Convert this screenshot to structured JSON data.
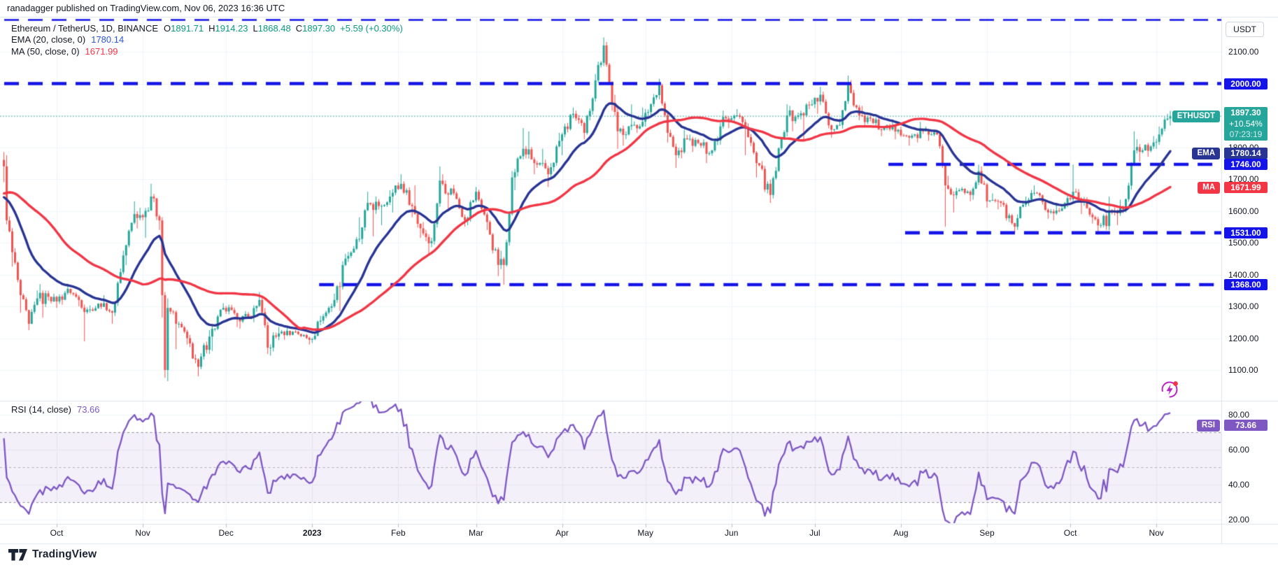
{
  "attribution": "ranadagger published on TradingView.com, Nov 06, 2023 16:36 UTC",
  "legend": {
    "symbol_title": "Ethereum / TetherUS, 1D, BINANCE",
    "o_label": "O",
    "o_value": "1891.71",
    "h_label": "H",
    "h_value": "1914.23",
    "l_label": "L",
    "l_value": "1868.48",
    "c_label": "C",
    "c_value": "1897.30",
    "change": "+5.59 (+0.30%)",
    "ema_label": "EMA (20, close, 0)",
    "ema_value": "1780.14",
    "ma_label": "MA (50, close, 0)",
    "ma_value": "1671.99",
    "rsi_label": "RSI (14, close)",
    "rsi_value": "73.66"
  },
  "price_scale": {
    "currency_button": "USDT",
    "plain_labels": [
      {
        "text": "2100.00",
        "price": 2100
      },
      {
        "text": "1800.00",
        "price": 1800
      },
      {
        "text": "1700.00",
        "price": 1700
      },
      {
        "text": "1600.00",
        "price": 1600
      },
      {
        "text": "1500.00",
        "price": 1500
      },
      {
        "text": "1400.00",
        "price": 1400
      },
      {
        "text": "1300.00",
        "price": 1300
      },
      {
        "text": "1200.00",
        "price": 1200
      },
      {
        "text": "1100.00",
        "price": 1100
      }
    ],
    "level_badges": [
      {
        "text": "2000.00",
        "price": 2000
      },
      {
        "text": "1746.00",
        "price": 1746
      },
      {
        "text": "1531.00",
        "price": 1531
      },
      {
        "text": "1368.00",
        "price": 1368
      }
    ],
    "last_price_badge": {
      "label": "ETHUSDT",
      "price": "1897.30",
      "change_pct": "+10.54%",
      "countdown": "07:23:19"
    },
    "ema_badge": {
      "label": "EMA",
      "value": "1780.14"
    },
    "ma_badge": {
      "label": "MA",
      "value": "1671.99"
    },
    "rsi_badge": {
      "label": "RSI",
      "value": "73.66"
    },
    "rsi_scale_labels": [
      {
        "text": "80.00",
        "value": 80
      },
      {
        "text": "60.00",
        "value": 60
      },
      {
        "text": "40.00",
        "value": 40
      },
      {
        "text": "20.00",
        "value": 20
      }
    ]
  },
  "time_axis": {
    "months": [
      {
        "label": "Oct",
        "date": "2022-10-01"
      },
      {
        "label": "Nov",
        "date": "2022-11-01"
      },
      {
        "label": "Dec",
        "date": "2022-12-01"
      },
      {
        "label": "2023",
        "date": "2023-01-01",
        "year": true
      },
      {
        "label": "Feb",
        "date": "2023-02-01"
      },
      {
        "label": "Mar",
        "date": "2023-03-01"
      },
      {
        "label": "Apr",
        "date": "2023-04-01"
      },
      {
        "label": "May",
        "date": "2023-05-01"
      },
      {
        "label": "Jun",
        "date": "2023-06-01"
      },
      {
        "label": "Jul",
        "date": "2023-07-01"
      },
      {
        "label": "Aug",
        "date": "2023-08-01"
      },
      {
        "label": "Sep",
        "date": "2023-09-01"
      },
      {
        "label": "Oct",
        "date": "2023-10-01"
      },
      {
        "label": "Nov",
        "date": "2023-11-01"
      }
    ]
  },
  "footer": {
    "brand": "TradingView"
  },
  "icons": {
    "flash": "lightning-notification-icon",
    "brand": "tradingview-logo"
  },
  "colors": {
    "up": "#26a69a",
    "down": "#ef5350",
    "ema_line": "#283593",
    "ma_line": "#f23645",
    "rsi_line": "#7e57c2",
    "level_line_blue": "#1414e8",
    "badge_blue": "#1414e8",
    "badge_teal": "#26a69a",
    "badge_navy": "#283593",
    "badge_red": "#f23645",
    "badge_purple": "#7e57c2",
    "last_price_dotted": "#26a69a",
    "rsi_band_fill": "rgba(126,87,194,0.09)",
    "rsi_band_line": "#787b86",
    "grid": "#f0f3fa",
    "border": "#e0e3eb",
    "text": "#131722"
  },
  "chart_data": {
    "type": "candlestick",
    "symbol": "ETHUSDT",
    "title": "Ethereum / TetherUS",
    "interval": "1D",
    "exchange": "BINANCE",
    "last_candle": {
      "open": 1891.71,
      "high": 1914.23,
      "low": 1868.48,
      "close": 1897.3,
      "change": "+5.59",
      "change_pct": "+0.30%"
    },
    "current_price_line": 1897.3,
    "price_axis_visible_range": [
      1003,
      2208
    ],
    "rsi_axis_visible_range": [
      18,
      88
    ],
    "start_date": "2022-09-12",
    "end_date": "2023-11-06",
    "horizontal_lines": [
      {
        "price": 2200,
        "start_date": "2022-09-12",
        "thin": true
      },
      {
        "price": 2000,
        "start_date": "2022-09-12"
      },
      {
        "price": 1746,
        "start_date": "2023-07-26"
      },
      {
        "price": 1531,
        "start_date": "2023-08-01"
      },
      {
        "price": 1368,
        "start_date": "2023-01-02"
      }
    ],
    "indicators": [
      {
        "type": "EMA",
        "length": 20,
        "source": "close",
        "offset": 0,
        "value": 1780.14
      },
      {
        "type": "MA",
        "length": 50,
        "source": "close",
        "offset": 0,
        "value": 1671.99
      },
      {
        "type": "RSI",
        "length": 14,
        "source": "close",
        "value": 73.66,
        "upper_band": 70,
        "middle_band": 50,
        "lower_band": 30
      }
    ],
    "prehistory_closes": [
      [
        "2022-07-14",
        1195
      ],
      [
        "2022-07-18",
        1570
      ],
      [
        "2022-07-22",
        1540
      ],
      [
        "2022-07-26",
        1450
      ],
      [
        "2022-07-30",
        1720
      ],
      [
        "2022-08-03",
        1635
      ],
      [
        "2022-08-07",
        1700
      ],
      [
        "2022-08-11",
        1850
      ],
      [
        "2022-08-14",
        1935
      ],
      [
        "2022-08-19",
        1630
      ],
      [
        "2022-08-23",
        1625
      ],
      [
        "2022-08-27",
        1480
      ],
      [
        "2022-08-31",
        1555
      ],
      [
        "2022-09-04",
        1555
      ],
      [
        "2022-09-06",
        1575
      ],
      [
        "2022-09-09",
        1715
      ],
      [
        "2022-09-11",
        1760
      ]
    ],
    "anchors": [
      [
        "2022-09-12",
        1740,
        1785,
        1690
      ],
      [
        "2022-09-13",
        1570,
        1775,
        1560
      ],
      [
        "2022-09-15",
        1470,
        1520,
        1425
      ],
      [
        "2022-09-18",
        1335,
        1390,
        1280
      ],
      [
        "2022-09-21",
        1245,
        1310,
        1225
      ],
      [
        "2022-09-24",
        1325,
        1350,
        1260
      ],
      [
        "2022-09-28",
        1330,
        1370,
        1265
      ],
      [
        "2022-10-01",
        1315,
        1340,
        1295
      ],
      [
        "2022-10-05",
        1355,
        1370,
        1305
      ],
      [
        "2022-10-09",
        1320,
        1340,
        1300
      ],
      [
        "2022-10-13",
        1290,
        1315,
        1190
      ],
      [
        "2022-10-18",
        1310,
        1335,
        1285
      ],
      [
        "2022-10-21",
        1280,
        1300,
        1245
      ],
      [
        "2022-10-25",
        1460,
        1475,
        1275
      ],
      [
        "2022-10-29",
        1590,
        1630,
        1430
      ],
      [
        "2022-11-01",
        1580,
        1610,
        1545
      ],
      [
        "2022-11-04",
        1645,
        1685,
        1515
      ],
      [
        "2022-11-07",
        1570,
        1625,
        1540
      ],
      [
        "2022-11-08",
        1335,
        1580,
        1265
      ],
      [
        "2022-11-09",
        1100,
        1345,
        1075
      ],
      [
        "2022-11-10",
        1295,
        1325,
        1065
      ],
      [
        "2022-11-14",
        1245,
        1290,
        1165
      ],
      [
        "2022-11-17",
        1200,
        1235,
        1180
      ],
      [
        "2022-11-21",
        1110,
        1175,
        1080
      ],
      [
        "2022-11-25",
        1205,
        1225,
        1125
      ],
      [
        "2022-11-30",
        1295,
        1310,
        1160
      ],
      [
        "2022-12-05",
        1260,
        1305,
        1235
      ],
      [
        "2022-12-10",
        1265,
        1285,
        1230
      ],
      [
        "2022-12-13",
        1320,
        1345,
        1250
      ],
      [
        "2022-12-16",
        1170,
        1285,
        1150
      ],
      [
        "2022-12-20",
        1215,
        1235,
        1145
      ],
      [
        "2022-12-26",
        1220,
        1235,
        1195
      ],
      [
        "2022-12-31",
        1195,
        1215,
        1180
      ],
      [
        "2023-01-04",
        1255,
        1270,
        1190
      ],
      [
        "2023-01-09",
        1320,
        1340,
        1245
      ],
      [
        "2023-01-13",
        1450,
        1465,
        1285
      ],
      [
        "2023-01-18",
        1512,
        1580,
        1455
      ],
      [
        "2023-01-21",
        1625,
        1660,
        1495
      ],
      [
        "2023-01-25",
        1615,
        1645,
        1520
      ],
      [
        "2023-01-29",
        1645,
        1665,
        1555
      ],
      [
        "2023-02-02",
        1685,
        1715,
        1595
      ],
      [
        "2023-02-06",
        1615,
        1650,
        1580
      ],
      [
        "2023-02-09",
        1545,
        1680,
        1515
      ],
      [
        "2023-02-13",
        1505,
        1565,
        1460
      ],
      [
        "2023-02-16",
        1695,
        1740,
        1495
      ],
      [
        "2023-02-21",
        1655,
        1715,
        1605
      ],
      [
        "2023-02-25",
        1570,
        1620,
        1550
      ],
      [
        "2023-03-01",
        1660,
        1675,
        1555
      ],
      [
        "2023-03-05",
        1565,
        1585,
        1540
      ],
      [
        "2023-03-09",
        1430,
        1565,
        1395
      ],
      [
        "2023-03-11",
        1430,
        1475,
        1368
      ],
      [
        "2023-03-14",
        1705,
        1725,
        1425
      ],
      [
        "2023-03-18",
        1795,
        1860,
        1665
      ],
      [
        "2023-03-22",
        1750,
        1850,
        1715
      ],
      [
        "2023-03-27",
        1715,
        1795,
        1675
      ],
      [
        "2023-03-31",
        1820,
        1845,
        1700
      ],
      [
        "2023-04-05",
        1905,
        1925,
        1775
      ],
      [
        "2023-04-09",
        1845,
        1915,
        1825
      ],
      [
        "2023-04-13",
        2010,
        2030,
        1850
      ],
      [
        "2023-04-16",
        2120,
        2145,
        2045
      ],
      [
        "2023-04-19",
        1940,
        2125,
        1915
      ],
      [
        "2023-04-21",
        1850,
        1965,
        1795
      ],
      [
        "2023-04-26",
        1870,
        1935,
        1805
      ],
      [
        "2023-04-30",
        1880,
        1925,
        1845
      ],
      [
        "2023-05-06",
        1995,
        2015,
        1865
      ],
      [
        "2023-05-09",
        1845,
        2000,
        1815
      ],
      [
        "2023-05-12",
        1775,
        1855,
        1735
      ],
      [
        "2023-05-16",
        1825,
        1855,
        1765
      ],
      [
        "2023-05-21",
        1805,
        1840,
        1785
      ],
      [
        "2023-05-25",
        1790,
        1825,
        1750
      ],
      [
        "2023-05-29",
        1895,
        1915,
        1785
      ],
      [
        "2023-06-03",
        1900,
        1920,
        1860
      ],
      [
        "2023-06-06",
        1860,
        1885,
        1775
      ],
      [
        "2023-06-10",
        1750,
        1875,
        1705
      ],
      [
        "2023-06-15",
        1650,
        1750,
        1625
      ],
      [
        "2023-06-21",
        1900,
        1935,
        1655
      ],
      [
        "2023-06-25",
        1900,
        1930,
        1850
      ],
      [
        "2023-06-30",
        1935,
        1950,
        1825
      ],
      [
        "2023-07-03",
        1965,
        1990,
        1905
      ],
      [
        "2023-07-07",
        1855,
        1975,
        1830
      ],
      [
        "2023-07-10",
        1870,
        1890,
        1845
      ],
      [
        "2023-07-13",
        2000,
        2025,
        1860
      ],
      [
        "2023-07-17",
        1900,
        1995,
        1885
      ],
      [
        "2023-07-21",
        1890,
        1930,
        1865
      ],
      [
        "2023-07-25",
        1855,
        1890,
        1835
      ],
      [
        "2023-07-31",
        1855,
        1885,
        1825
      ],
      [
        "2023-08-04",
        1830,
        1865,
        1805
      ],
      [
        "2023-08-09",
        1850,
        1880,
        1815
      ],
      [
        "2023-08-14",
        1840,
        1865,
        1820
      ],
      [
        "2023-08-17",
        1680,
        1850,
        1550
      ],
      [
        "2023-08-22",
        1665,
        1710,
        1595
      ],
      [
        "2023-08-26",
        1650,
        1675,
        1630
      ],
      [
        "2023-08-29",
        1725,
        1745,
        1635
      ],
      [
        "2023-09-01",
        1630,
        1740,
        1610
      ],
      [
        "2023-09-05",
        1630,
        1655,
        1605
      ],
      [
        "2023-09-11",
        1550,
        1625,
        1530
      ],
      [
        "2023-09-15",
        1625,
        1645,
        1540
      ],
      [
        "2023-09-19",
        1655,
        1680,
        1615
      ],
      [
        "2023-09-23",
        1595,
        1630,
        1575
      ],
      [
        "2023-09-27",
        1600,
        1625,
        1570
      ],
      [
        "2023-10-02",
        1660,
        1746,
        1630
      ],
      [
        "2023-10-06",
        1635,
        1670,
        1590
      ],
      [
        "2023-10-09",
        1580,
        1635,
        1560
      ],
      [
        "2023-10-12",
        1555,
        1585,
        1525
      ],
      [
        "2023-10-16",
        1600,
        1645,
        1540
      ],
      [
        "2023-10-20",
        1605,
        1635,
        1555
      ],
      [
        "2023-10-24",
        1790,
        1850,
        1595
      ],
      [
        "2023-10-27",
        1790,
        1825,
        1755
      ],
      [
        "2023-10-31",
        1815,
        1835,
        1770
      ],
      [
        "2023-11-02",
        1840,
        1865,
        1795
      ],
      [
        "2023-11-05",
        1890,
        1905,
        1845
      ],
      [
        "2023-11-06",
        1897.3,
        1914.23,
        1868.48
      ]
    ]
  }
}
